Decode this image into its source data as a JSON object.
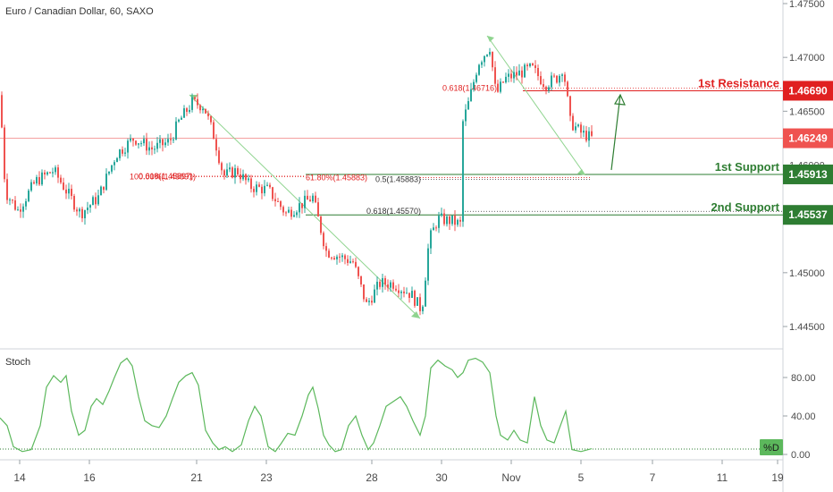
{
  "header": {
    "title": "Euro / Canadian Dollar, 60, SAXO"
  },
  "colors": {
    "up": "#26a69a",
    "down": "#ef5350",
    "resistance": "#e02020",
    "support": "#2e7d32",
    "current": "#ef5350",
    "stoch": "#5cb85c",
    "arrow": "#8fd48f"
  },
  "chart_data": [
    {
      "type": "candlestick",
      "title": "Euro / Canadian Dollar, 60, SAXO",
      "ylim": [
        1.443,
        1.4775
      ],
      "x_ticks": [
        "14",
        "16",
        "21",
        "23",
        "28",
        "30",
        "Nov",
        "5",
        "7",
        "11",
        "19"
      ],
      "y_ticks": [
        "1.47500",
        "1.47000",
        "1.46500",
        "1.46000",
        "1.45500",
        "1.45000",
        "1.44500"
      ],
      "price_path": [
        [
          0,
          1.4665
        ],
        [
          6,
          1.4575
        ],
        [
          20,
          1.4558
        ],
        [
          40,
          1.4585
        ],
        [
          60,
          1.4595
        ],
        [
          75,
          1.4575
        ],
        [
          90,
          1.4555
        ],
        [
          110,
          1.457
        ],
        [
          130,
          1.461
        ],
        [
          150,
          1.4625
        ],
        [
          170,
          1.4615
        ],
        [
          190,
          1.4622
        ],
        [
          200,
          1.464
        ],
        [
          215,
          1.4658
        ],
        [
          228,
          1.4655
        ],
        [
          240,
          1.4625
        ],
        [
          250,
          1.459
        ],
        [
          265,
          1.4595
        ],
        [
          280,
          1.458
        ],
        [
          300,
          1.4577
        ],
        [
          320,
          1.4555
        ],
        [
          340,
          1.4565
        ],
        [
          350,
          1.457
        ],
        [
          365,
          1.452
        ],
        [
          380,
          1.4515
        ],
        [
          395,
          1.451
        ],
        [
          410,
          1.447
        ],
        [
          425,
          1.449
        ],
        [
          440,
          1.449
        ],
        [
          460,
          1.448
        ],
        [
          472,
          1.4465
        ],
        [
          480,
          1.453
        ],
        [
          490,
          1.455
        ],
        [
          505,
          1.4548
        ],
        [
          515,
          1.4545
        ],
        [
          518,
          1.464
        ],
        [
          525,
          1.466
        ],
        [
          535,
          1.4695
        ],
        [
          548,
          1.471
        ],
        [
          555,
          1.4665
        ],
        [
          565,
          1.468
        ],
        [
          580,
          1.4685
        ],
        [
          595,
          1.469
        ],
        [
          610,
          1.4675
        ],
        [
          625,
          1.4682
        ],
        [
          630,
          1.4692
        ],
        [
          638,
          1.464
        ],
        [
          650,
          1.463
        ],
        [
          662,
          1.4625
        ]
      ],
      "levels": [
        {
          "label": "1st Resistance",
          "value": "1.46690",
          "y": 1.4669,
          "kind": "resistance"
        },
        {
          "label": "1st Support",
          "value": "1.45913",
          "y": 1.45913,
          "kind": "support"
        },
        {
          "label": "2nd Support",
          "value": "1.45537",
          "y": 1.45537,
          "kind": "support"
        }
      ],
      "current_price": {
        "value": "1.46249",
        "y": 1.46249
      },
      "fib_annotations": [
        {
          "text": "0.618(1.46716)",
          "y": 1.46716,
          "color": "#e02020"
        },
        {
          "text": "100.00%(1.45891)",
          "y": 1.45891,
          "color": "#e02020"
        },
        {
          "text": "0.618(1.45897)",
          "y": 1.45897,
          "color": "#e02020"
        },
        {
          "text": "61.80%(1.45883)",
          "y": 1.45883,
          "color": "#e02020"
        },
        {
          "text": "0.5(1.45883)",
          "y": 1.45868,
          "color": "#333333"
        },
        {
          "text": "0.618(1.45570)",
          "y": 1.4557,
          "color": "#333333"
        }
      ]
    },
    {
      "type": "line",
      "title": "Stoch",
      "ylim": [
        0,
        110
      ],
      "y_ticks": [
        "80.00",
        "40.00",
        "0.00"
      ],
      "series": [
        {
          "name": "%D",
          "values": [
            [
              0,
              38
            ],
            [
              8,
              30
            ],
            [
              15,
              8
            ],
            [
              25,
              3
            ],
            [
              35,
              5
            ],
            [
              45,
              30
            ],
            [
              52,
              70
            ],
            [
              60,
              82
            ],
            [
              68,
              75
            ],
            [
              74,
              82
            ],
            [
              80,
              45
            ],
            [
              88,
              20
            ],
            [
              95,
              25
            ],
            [
              102,
              50
            ],
            [
              108,
              58
            ],
            [
              115,
              52
            ],
            [
              122,
              66
            ],
            [
              128,
              80
            ],
            [
              135,
              95
            ],
            [
              142,
              100
            ],
            [
              148,
              92
            ],
            [
              155,
              60
            ],
            [
              162,
              35
            ],
            [
              170,
              30
            ],
            [
              178,
              28
            ],
            [
              186,
              40
            ],
            [
              193,
              58
            ],
            [
              200,
              75
            ],
            [
              208,
              82
            ],
            [
              215,
              85
            ],
            [
              222,
              72
            ],
            [
              230,
              25
            ],
            [
              238,
              12
            ],
            [
              245,
              5
            ],
            [
              252,
              8
            ],
            [
              260,
              3
            ],
            [
              270,
              10
            ],
            [
              278,
              35
            ],
            [
              285,
              50
            ],
            [
              292,
              40
            ],
            [
              300,
              8
            ],
            [
              308,
              3
            ],
            [
              315,
              12
            ],
            [
              322,
              22
            ],
            [
              330,
              20
            ],
            [
              338,
              40
            ],
            [
              345,
              62
            ],
            [
              350,
              70
            ],
            [
              356,
              48
            ],
            [
              362,
              20
            ],
            [
              368,
              10
            ],
            [
              375,
              3
            ],
            [
              382,
              5
            ],
            [
              390,
              30
            ],
            [
              398,
              40
            ],
            [
              405,
              20
            ],
            [
              412,
              5
            ],
            [
              418,
              12
            ],
            [
              425,
              30
            ],
            [
              432,
              50
            ],
            [
              440,
              55
            ],
            [
              448,
              60
            ],
            [
              455,
              50
            ],
            [
              462,
              35
            ],
            [
              470,
              20
            ],
            [
              476,
              40
            ],
            [
              482,
              90
            ],
            [
              490,
              98
            ],
            [
              498,
              92
            ],
            [
              506,
              88
            ],
            [
              512,
              80
            ],
            [
              518,
              85
            ],
            [
              524,
              98
            ],
            [
              532,
              100
            ],
            [
              540,
              96
            ],
            [
              548,
              85
            ],
            [
              555,
              40
            ],
            [
              560,
              20
            ],
            [
              568,
              15
            ],
            [
              575,
              25
            ],
            [
              582,
              15
            ],
            [
              590,
              12
            ],
            [
              598,
              60
            ],
            [
              605,
              30
            ],
            [
              612,
              15
            ],
            [
              620,
              12
            ],
            [
              627,
              30
            ],
            [
              633,
              45
            ],
            [
              640,
              5
            ],
            [
              650,
              3
            ],
            [
              662,
              6
            ]
          ]
        }
      ]
    }
  ]
}
